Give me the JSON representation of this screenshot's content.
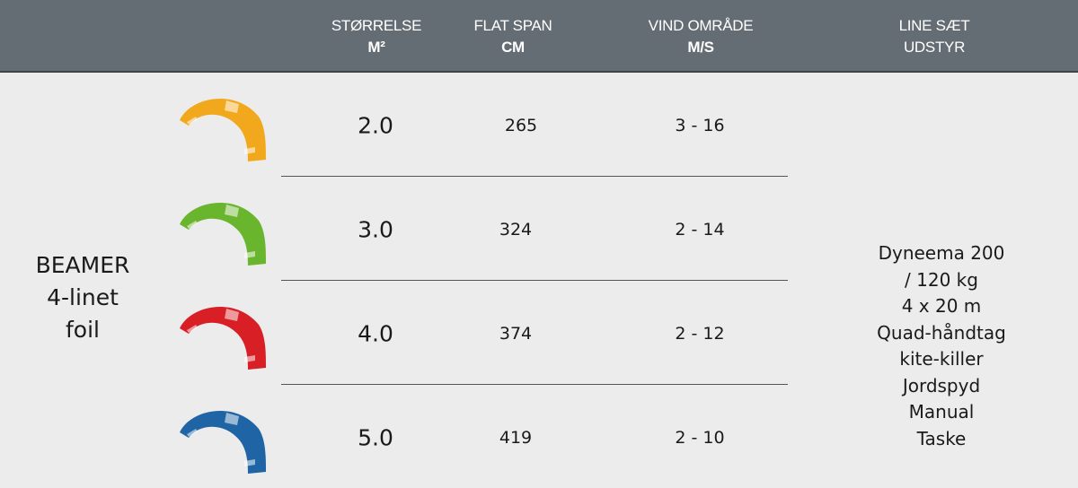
{
  "header": {
    "size": {
      "label": "STØRRELSE",
      "unit": "M²"
    },
    "span": {
      "label": "FLAT SPAN",
      "unit": "CM"
    },
    "wind": {
      "label": "VIND OMRÅDE",
      "unit": "M/S"
    },
    "lines": {
      "label": "LINE SÆT",
      "unit": "UDSTYR"
    }
  },
  "model": [
    "BEAMER",
    "4-linet",
    "foil"
  ],
  "rows": [
    {
      "size": "2.0",
      "span": "265",
      "wind": "3 - 16",
      "color": "#f2a81d"
    },
    {
      "size": "3.0",
      "span": "324",
      "wind": "2 - 14",
      "color": "#6ab52e"
    },
    {
      "size": "4.0",
      "span": "374",
      "wind": "2 - 12",
      "color": "#d81f26"
    },
    {
      "size": "5.0",
      "span": "419",
      "wind": "2 - 10",
      "color": "#1f64a5"
    }
  ],
  "equipment": [
    "Dyneema 200 / 120 kg",
    "4 x 20 m",
    "Quad-håndtag",
    "kite-killer",
    "Jordspyd",
    "Manual",
    "Taske"
  ]
}
